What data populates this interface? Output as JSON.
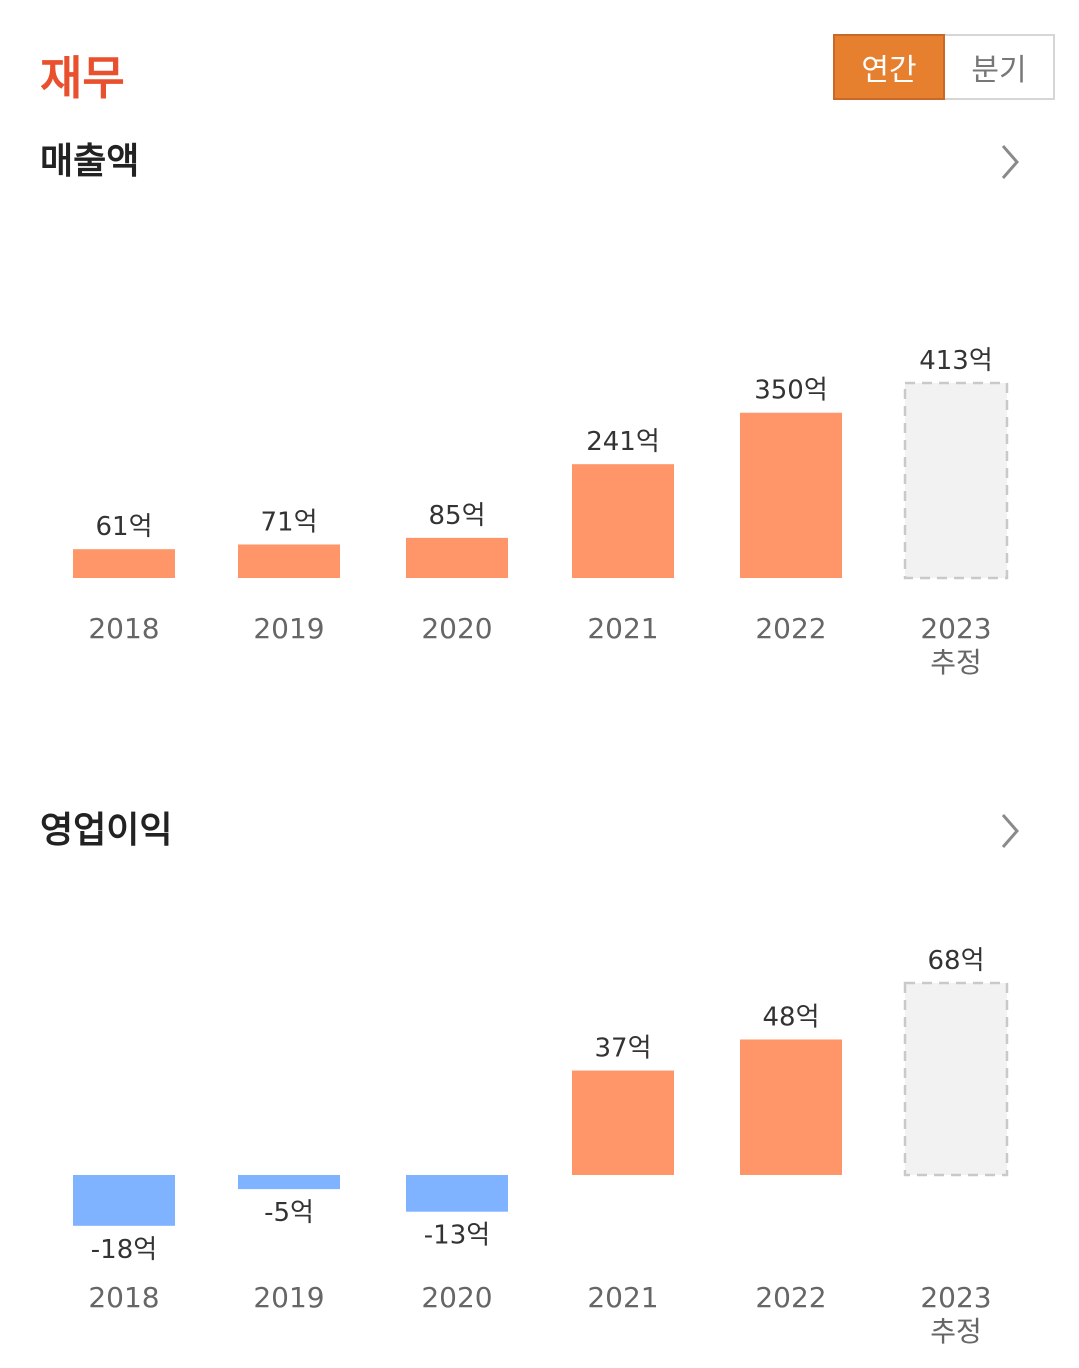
{
  "header": {
    "title": "재무",
    "toggle": {
      "annual": "연간",
      "quarterly": "분기",
      "selected": "annual"
    }
  },
  "colors": {
    "accent": "#e8502e",
    "toggle_active": "#e6802f",
    "positive_bar": "#ff9669",
    "negative_bar": "#7fb3ff",
    "estimate_fill": "#f2f2f2",
    "estimate_border": "#c9c9c9"
  },
  "icons": {
    "more": "chevron-right-icon"
  },
  "sections": [
    {
      "title": "매출액"
    },
    {
      "title": "영업이익"
    }
  ],
  "chart_data": [
    {
      "type": "bar",
      "categories": [
        "2018",
        "2019",
        "2020",
        "2021",
        "2022",
        "2023"
      ],
      "category_notes": [
        "",
        "",
        "",
        "",
        "",
        "추정"
      ],
      "values": [
        61,
        71,
        85,
        241,
        350,
        413
      ],
      "value_labels": [
        "61억",
        "71억",
        "85억",
        "241억",
        "350억",
        "413억"
      ],
      "estimated": [
        false,
        false,
        false,
        false,
        false,
        true
      ],
      "unit": "억",
      "title": "매출액"
    },
    {
      "type": "bar",
      "categories": [
        "2018",
        "2019",
        "2020",
        "2021",
        "2022",
        "2023"
      ],
      "category_notes": [
        "",
        "",
        "",
        "",
        "",
        "추정"
      ],
      "values": [
        -18,
        -5,
        -13,
        37,
        48,
        68
      ],
      "value_labels": [
        "-18억",
        "-5억",
        "-13억",
        "37억",
        "48억",
        "68억"
      ],
      "estimated": [
        false,
        false,
        false,
        false,
        false,
        true
      ],
      "unit": "억",
      "title": "영업이익"
    }
  ]
}
